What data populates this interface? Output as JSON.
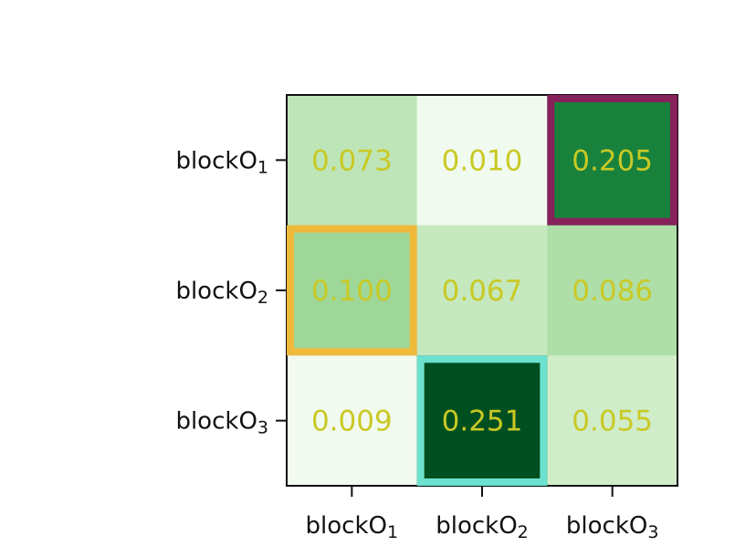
{
  "chart_data": {
    "type": "heatmap",
    "title": "",
    "xlabel": "",
    "ylabel": "",
    "x_categories": [
      {
        "base": "blockO",
        "sub": "1"
      },
      {
        "base": "blockO",
        "sub": "2"
      },
      {
        "base": "blockO",
        "sub": "3"
      }
    ],
    "y_categories": [
      {
        "base": "blockO",
        "sub": "1"
      },
      {
        "base": "blockO",
        "sub": "2"
      },
      {
        "base": "blockO",
        "sub": "3"
      }
    ],
    "values": [
      [
        0.073,
        0.01,
        0.205
      ],
      [
        0.1,
        0.067,
        0.086
      ],
      [
        0.009,
        0.251,
        0.055
      ]
    ],
    "value_labels": [
      [
        "0.073",
        "0.010",
        "0.205"
      ],
      [
        "0.100",
        "0.067",
        "0.086"
      ],
      [
        "0.009",
        "0.251",
        "0.055"
      ]
    ],
    "colormap": "Greens",
    "value_range": [
      0.0,
      0.26
    ],
    "label_color": "#c9c924",
    "highlights": [
      {
        "row": 0,
        "col": 2,
        "color": "#87215a"
      },
      {
        "row": 1,
        "col": 0,
        "color": "#efb93a"
      },
      {
        "row": 2,
        "col": 1,
        "color": "#6de1cf"
      }
    ],
    "colorbar": false,
    "grid": false
  }
}
